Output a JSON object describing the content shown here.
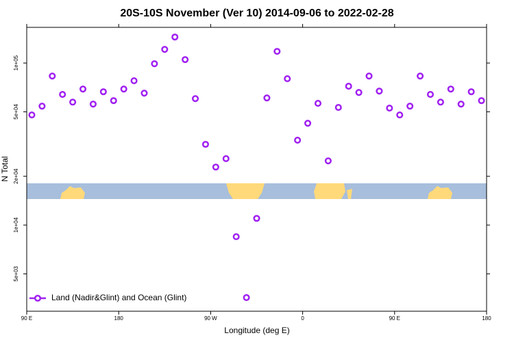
{
  "chart_data": {
    "type": "scatter",
    "title": "20S-10S November (Ver 10)   2014-09-06 to 2022-02-28",
    "x_label": "Longitude (deg E)",
    "y_label": "N Total",
    "log_y": true,
    "x": [
      95,
      105,
      115,
      125,
      135,
      145,
      155,
      165,
      175,
      185,
      195,
      205,
      215,
      225,
      235,
      245,
      255,
      265,
      275,
      285,
      295,
      305,
      315,
      325,
      335,
      345,
      355,
      365,
      375,
      385,
      395,
      405,
      415,
      425,
      435,
      445,
      455,
      465,
      475,
      485,
      495,
      505,
      515,
      525,
      535
    ],
    "series": [
      {
        "name": "Land (Nadir&Glint) and Ocean (Glint)",
        "color": "#a020f0",
        "values": [
          47800,
          54200,
          83100,
          64000,
          57400,
          69100,
          55800,
          66500,
          58600,
          69100,
          77700,
          65200,
          99000,
          121400,
          144700,
          105000,
          60300,
          31500,
          22800,
          25700,
          8480,
          3570,
          11000,
          60900,
          118000,
          80000,
          33400,
          42500,
          56400,
          24900,
          53200,
          71900,
          65800,
          83100,
          67100,
          52700,
          47800,
          54200,
          83100,
          64000,
          57400,
          69100,
          55800,
          66500,
          58600
        ]
      }
    ],
    "xlim": [
      90,
      540
    ],
    "xticks": [
      {
        "value": 90,
        "label": "90 E"
      },
      180,
      {
        "value": 270,
        "label": "90 W"
      },
      {
        "value": 360,
        "label": "0"
      },
      {
        "value": 450,
        "label": "90 E"
      },
      {
        "value": 540,
        "label": "180"
      }
    ],
    "ylim": [
      2940,
      166000
    ],
    "yticks": [
      {
        "value": 5000,
        "label": "5e+03"
      },
      {
        "value": 10000,
        "label": "1e+04"
      },
      {
        "value": 20000,
        "label": "2e+04"
      },
      {
        "value": 50000,
        "label": "5e+04"
      },
      {
        "value": 100000,
        "label": "1e+05"
      }
    ],
    "legend": "bottom-left"
  }
}
